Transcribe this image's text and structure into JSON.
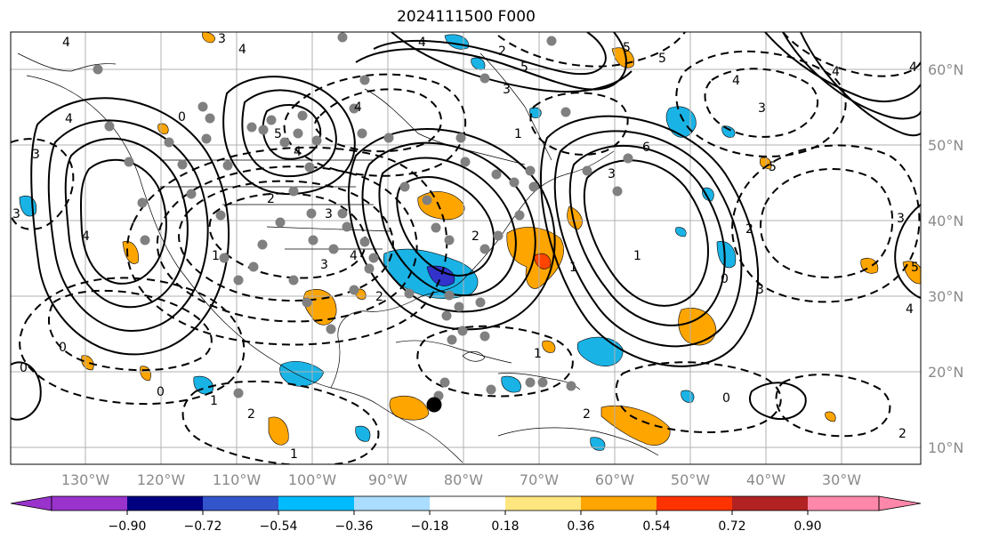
{
  "title": "2024111500 F000",
  "longitude_labels": [
    "130°W",
    "120°W",
    "110°W",
    "100°W",
    "90°W",
    "80°W",
    "70°W",
    "60°W",
    "50°W",
    "40°W",
    "30°W"
  ],
  "latitude_labels": [
    "60°N",
    "50°N",
    "40°N",
    "30°N",
    "20°N",
    "10°N"
  ],
  "colorbar": {
    "ticks": [
      "−0.90",
      "−0.72",
      "−0.54",
      "−0.36",
      "−0.18",
      "0.18",
      "0.36",
      "0.54",
      "0.72",
      "0.90"
    ],
    "colors": [
      "#9933cc",
      "#000080",
      "#3355cc",
      "#00bbff",
      "#aaddff",
      "#ffffff",
      "#ffe680",
      "#ffa500",
      "#ff3300",
      "#b22222",
      "#ff88aa"
    ]
  },
  "contour_labels": [
    "4",
    "3",
    "4",
    "0",
    "5",
    "4",
    "3",
    "4",
    "3",
    "4",
    "3",
    "2",
    "0",
    "1",
    "2",
    "1",
    "4",
    "4",
    "5",
    "3",
    "5",
    "1",
    "2",
    "4",
    "3",
    "4",
    "5",
    "2",
    "4",
    "6",
    "3",
    "1",
    "0",
    "0",
    "1",
    "2",
    "1",
    "3",
    "3",
    "5",
    "4",
    "0",
    "2",
    "0",
    "1",
    "2",
    "3",
    "4",
    "2",
    "5"
  ],
  "colors": {
    "fill_positive": "#ffa500",
    "fill_strong_positive": "#ff4500",
    "fill_negative": "#1ab3e6",
    "fill_strong_negative": "#3333cc",
    "markers": "#808080",
    "storm_marker": "#000000",
    "grid": "#b0b0b0",
    "axis_labels": "#808080"
  }
}
